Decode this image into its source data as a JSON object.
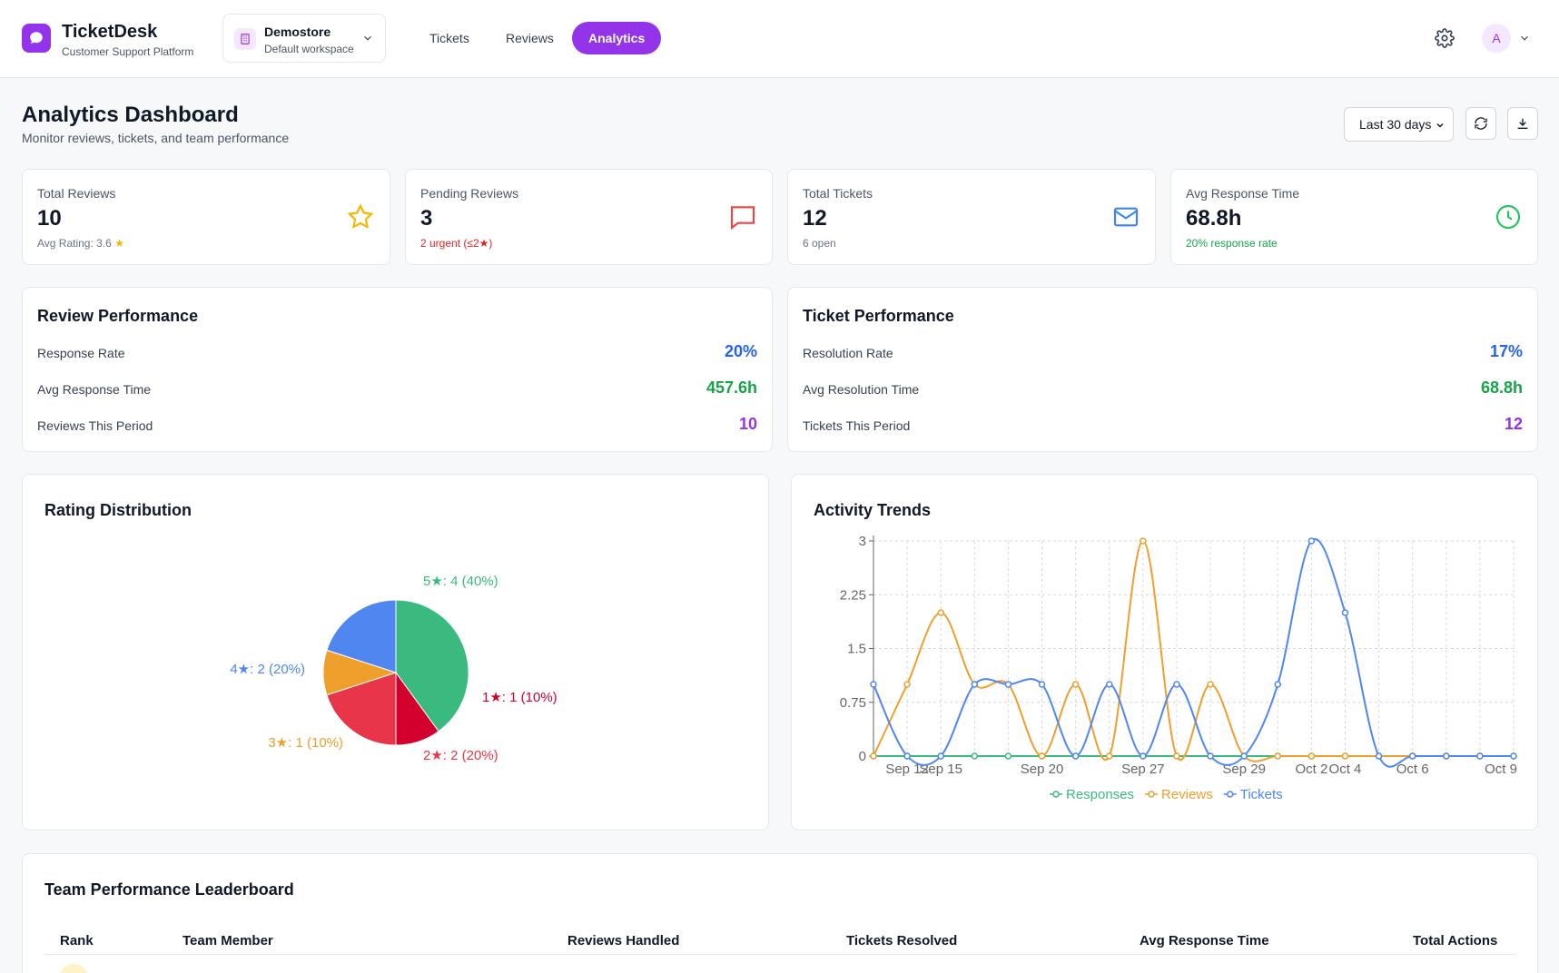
{
  "header": {
    "app_name": "TicketDesk",
    "app_sub": "Customer Support Platform",
    "workspace": {
      "name": "Demostore",
      "desc": "Default workspace"
    },
    "tabs": [
      {
        "label": "Tickets",
        "active": false
      },
      {
        "label": "Reviews",
        "active": false
      },
      {
        "label": "Analytics",
        "active": true
      }
    ],
    "avatar_initial": "A"
  },
  "page": {
    "title": "Analytics Dashboard",
    "subtitle": "Monitor reviews, tickets, and team performance",
    "range": "Last 30 days"
  },
  "stats": [
    {
      "label": "Total Reviews",
      "value": "10",
      "note": "Avg Rating: 3.6",
      "note_color": "#6b7280",
      "icon": "star-icon",
      "color": "#f5b400"
    },
    {
      "label": "Pending Reviews",
      "value": "3",
      "note": "2 urgent (≤2★)",
      "note_color": "#dc2626",
      "icon": "message-icon",
      "color": "#ef4444"
    },
    {
      "label": "Total Tickets",
      "value": "12",
      "note": "6 open",
      "note_color": "#6b7280",
      "icon": "mail-icon",
      "color": "#3b82f6"
    },
    {
      "label": "Avg Response Time",
      "value": "68.8h",
      "note": "20% response rate",
      "note_color": "#16a34a",
      "icon": "clock-icon",
      "color": "#22c55e"
    }
  ],
  "review_perf": {
    "title": "Review Performance",
    "rows": [
      {
        "label": "Response Rate",
        "value": "20%",
        "color": "#2563eb"
      },
      {
        "label": "Avg Response Time",
        "value": "457.6h",
        "color": "#16a34a"
      },
      {
        "label": "Reviews This Period",
        "value": "10",
        "color": "#9333ea"
      }
    ]
  },
  "ticket_perf": {
    "title": "Ticket Performance",
    "rows": [
      {
        "label": "Resolution Rate",
        "value": "17%",
        "color": "#2563eb"
      },
      {
        "label": "Avg Resolution Time",
        "value": "68.8h",
        "color": "#16a34a"
      },
      {
        "label": "Tickets This Period",
        "value": "12",
        "color": "#9333ea"
      }
    ]
  },
  "rating_chart": {
    "title": "Rating Distribution",
    "chart_data": {
      "type": "pie",
      "slices": [
        {
          "label": "5★: 4 (40%)",
          "value": 4,
          "color": "#3bba7f"
        },
        {
          "label": "1★: 1 (10%)",
          "value": 1,
          "color": "#d3002d"
        },
        {
          "label": "2★: 2 (20%)",
          "value": 2,
          "color": "#e8354a"
        },
        {
          "label": "3★: 1 (10%)",
          "value": 1,
          "color": "#ef9f2c"
        },
        {
          "label": "4★: 2 (20%)",
          "value": 2,
          "color": "#4f86f0"
        }
      ]
    }
  },
  "activity_chart": {
    "title": "Activity Trends",
    "chart_data": {
      "type": "line",
      "x": [
        "Sep 12",
        "Sep 12",
        "Sep 15",
        "Sep 15",
        "Sep 15",
        "Sep 20",
        "Sep 20",
        "Sep 20",
        "Sep 27",
        "Sep 27",
        "Sep 27",
        "Sep 29",
        "Sep 29",
        "Oct 2",
        "Oct 4",
        "Oct 4",
        "Oct 6",
        "Oct 6",
        "Oct 9",
        "Oct 9"
      ],
      "tick_labels": [
        "Sep 12",
        "Sep 15",
        "Sep 20",
        "Sep 27",
        "Sep 29",
        "Oct 2",
        "Oct 4",
        "Oct 6",
        "Oct 9"
      ],
      "y_ticks": [
        "0",
        "0.75",
        "1.5",
        "2.25",
        "3"
      ],
      "ylim": [
        0,
        3
      ],
      "series": [
        {
          "name": "Responses",
          "color": "#3bba7f",
          "values": [
            0,
            0,
            0,
            0,
            0,
            0,
            0,
            0,
            0,
            0,
            0,
            0,
            0,
            0,
            0,
            0,
            0,
            0,
            0,
            0
          ]
        },
        {
          "name": "Reviews",
          "color": "#ef9f2c",
          "values": [
            0,
            1,
            2,
            1,
            1,
            0,
            1,
            0,
            3,
            0,
            1,
            0,
            0,
            0,
            0,
            0,
            0,
            0,
            0,
            0
          ]
        },
        {
          "name": "Tickets",
          "color": "#4f86f0",
          "values": [
            1,
            0,
            0,
            1,
            1,
            1,
            0,
            1,
            0,
            1,
            0,
            0,
            1,
            3,
            2,
            0,
            0,
            0,
            0,
            0
          ]
        }
      ]
    }
  },
  "leaderboard": {
    "title": "Team Performance Leaderboard",
    "columns": [
      "Rank",
      "Team Member",
      "Reviews Handled",
      "Tickets Resolved",
      "Avg Response Time",
      "Total Actions"
    ]
  }
}
